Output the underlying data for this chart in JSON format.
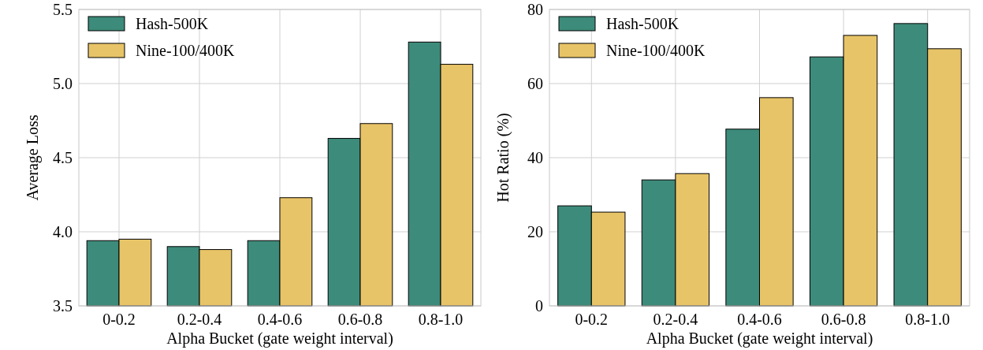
{
  "chart_data": [
    {
      "type": "bar",
      "xlabel": "Alpha Bucket (gate weight interval)",
      "ylabel": "Average Loss",
      "categories": [
        "0-0.2",
        "0.2-0.4",
        "0.4-0.6",
        "0.6-0.8",
        "0.8-1.0"
      ],
      "series": [
        {
          "name": "Hash-500K",
          "color": "#3d8b7a",
          "values": [
            3.94,
            3.9,
            3.94,
            4.63,
            5.28
          ]
        },
        {
          "name": "Nine-100/400K",
          "color": "#e8c468",
          "values": [
            3.95,
            3.88,
            4.23,
            4.73,
            5.13
          ]
        }
      ],
      "ylim": [
        3.5,
        5.5
      ],
      "yticks": [
        3.5,
        {
          "value": 4,
          "label": "4.0"
        },
        4.5,
        {
          "value": 5,
          "label": "5.0"
        },
        5.5
      ],
      "grid": true,
      "legend": "top left"
    },
    {
      "type": "bar",
      "xlabel": "Alpha Bucket (gate weight interval)",
      "ylabel": "Hot Ratio (%)",
      "categories": [
        "0-0.2",
        "0.2-0.4",
        "0.4-0.6",
        "0.6-0.8",
        "0.8-1.0"
      ],
      "series": [
        {
          "name": "Hash-500K",
          "color": "#3d8b7a",
          "values": [
            27.0,
            34.0,
            47.7,
            67.2,
            76.2
          ]
        },
        {
          "name": "Nine-100/400K",
          "color": "#e8c468",
          "values": [
            25.3,
            35.7,
            56.2,
            73.0,
            69.4
          ]
        }
      ],
      "ylim": [
        0,
        80
      ],
      "yticks": [
        0,
        20,
        40,
        60,
        80
      ],
      "grid": true,
      "legend": "top left"
    }
  ]
}
